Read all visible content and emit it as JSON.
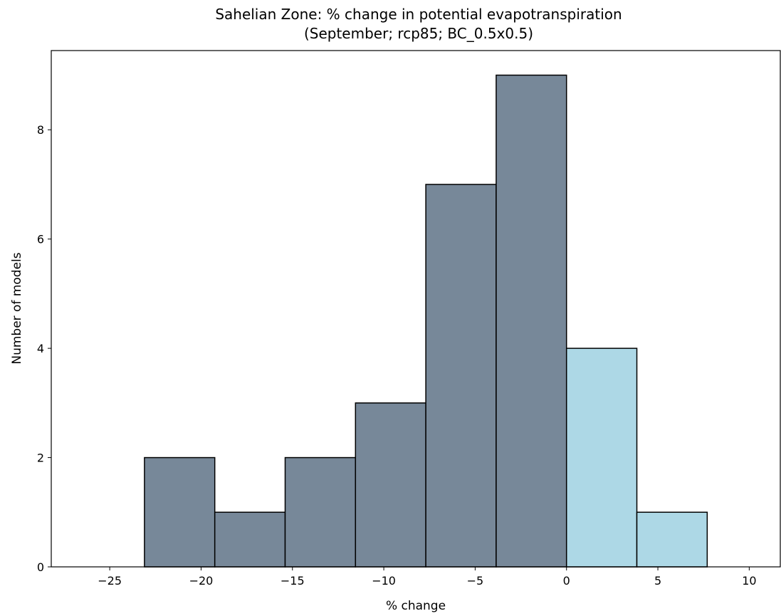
{
  "chart_data": {
    "type": "bar",
    "title": "Sahelian Zone: % change in potential evapotranspiration",
    "subtitle": "(September; rcp85; BC_0.5x0.5)",
    "xlabel": "% change",
    "ylabel": "Number of models",
    "xlim": [
      -28.2,
      11.7
    ],
    "ylim": [
      0,
      9.45
    ],
    "xticks": [
      -25,
      -20,
      -15,
      -10,
      -5,
      0,
      5,
      10
    ],
    "xtick_labels": [
      "−25",
      "−20",
      "−15",
      "−10",
      "−5",
      "0",
      "5",
      "10"
    ],
    "yticks": [
      0,
      2,
      4,
      6,
      8
    ],
    "ytick_labels": [
      "0",
      "2",
      "4",
      "6",
      "8"
    ],
    "bins": [
      {
        "x0": -23.1,
        "x1": -19.25,
        "count": 2,
        "color": "#778899"
      },
      {
        "x0": -19.25,
        "x1": -15.4,
        "count": 1,
        "color": "#778899"
      },
      {
        "x0": -15.4,
        "x1": -11.55,
        "count": 2,
        "color": "#778899"
      },
      {
        "x0": -11.55,
        "x1": -7.7,
        "count": 3,
        "color": "#778899"
      },
      {
        "x0": -7.7,
        "x1": -3.85,
        "count": 7,
        "color": "#778899"
      },
      {
        "x0": -3.85,
        "x1": 0.0,
        "count": 9,
        "color": "#778899"
      },
      {
        "x0": 0.0,
        "x1": 3.85,
        "count": 4,
        "color": "#add8e6"
      },
      {
        "x0": 3.85,
        "x1": 7.7,
        "count": 1,
        "color": "#add8e6"
      }
    ],
    "grid": false,
    "edge_color": "#000000"
  }
}
